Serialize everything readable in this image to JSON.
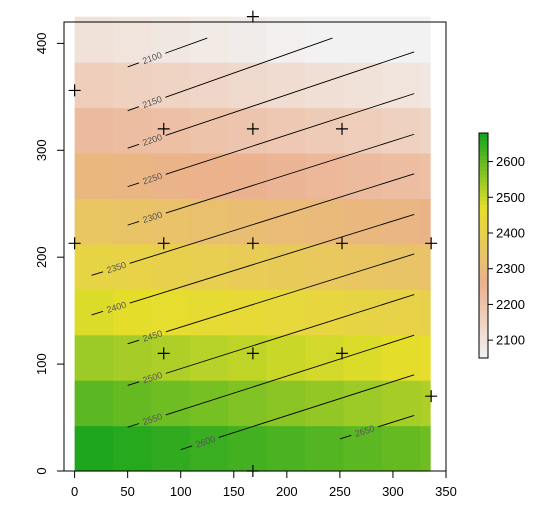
{
  "chart_data": {
    "type": "heatmap",
    "title": "",
    "xlabel": "",
    "ylabel": "",
    "xlim": [
      -10,
      350
    ],
    "ylim": [
      0,
      420
    ],
    "x_ticks": [
      0,
      50,
      100,
      150,
      200,
      250,
      300,
      350
    ],
    "y_ticks": [
      0,
      100,
      200,
      300,
      400
    ],
    "x_tick_labels": [
      "0",
      "50",
      "100",
      "150",
      "200",
      "250",
      "300",
      "350"
    ],
    "y_tick_labels": [
      "0",
      "100",
      "200",
      "300",
      "400"
    ],
    "grid": false,
    "raster": {
      "x_edges": [
        0,
        36.2,
        72.4,
        108.6,
        144.8,
        181,
        217.2,
        253.4,
        289.6,
        325.8,
        335
      ],
      "y_edges": [
        0,
        42.5,
        85,
        127.5,
        170,
        212.5,
        255,
        297.5,
        340,
        382.5,
        425
      ],
      "values": [
        [
          2669,
          2660,
          2651,
          2642,
          2633,
          2625,
          2616,
          2607,
          2598,
          2589
        ],
        [
          2607,
          2598,
          2589,
          2580,
          2571,
          2562,
          2553,
          2544,
          2535,
          2527
        ],
        [
          2544,
          2535,
          2526,
          2517,
          2508,
          2499,
          2490,
          2481,
          2472,
          2463
        ],
        [
          2481,
          2472,
          2463,
          2454,
          2445,
          2436,
          2427,
          2418,
          2409,
          2400
        ],
        [
          2418,
          2409,
          2400,
          2391,
          2382,
          2373,
          2364,
          2355,
          2346,
          2338
        ],
        [
          2355,
          2347,
          2338,
          2329,
          2320,
          2311,
          2302,
          2293,
          2284,
          2275
        ],
        [
          2293,
          2284,
          2275,
          2266,
          2257,
          2248,
          2239,
          2230,
          2221,
          2212
        ],
        [
          2230,
          2221,
          2212,
          2203,
          2194,
          2185,
          2176,
          2167,
          2158,
          2149
        ],
        [
          2167,
          2158,
          2149,
          2140,
          2131,
          2122,
          2113,
          2104,
          2096,
          2087
        ],
        [
          2104,
          2095,
          2086,
          2077,
          2068,
          2059,
          2050,
          2041,
          2032,
          2024
        ]
      ]
    },
    "contours": [
      {
        "level": "2100",
        "label": "2100",
        "x": [
          50,
          125
        ],
        "y": [
          378,
          405
        ]
      },
      {
        "level": "2150",
        "label": "2150",
        "x": [
          50,
          243
        ],
        "y": [
          337,
          405
        ]
      },
      {
        "level": "2200",
        "label": "2200",
        "x": [
          50,
          320
        ],
        "y": [
          302,
          392
        ]
      },
      {
        "level": "2250",
        "label": "2250",
        "x": [
          50,
          320
        ],
        "y": [
          266,
          353
        ]
      },
      {
        "level": "2300",
        "label": "2300",
        "x": [
          50,
          320
        ],
        "y": [
          230,
          315
        ]
      },
      {
        "level": "2350",
        "label": "2350",
        "x": [
          16,
          320
        ],
        "y": [
          183,
          278
        ]
      },
      {
        "level": "2400",
        "label": "2400",
        "x": [
          16,
          320
        ],
        "y": [
          146,
          240
        ]
      },
      {
        "level": "2450",
        "label": "2450",
        "x": [
          50,
          320
        ],
        "y": [
          119,
          203
        ]
      },
      {
        "level": "2500",
        "label": "2500",
        "x": [
          50,
          320
        ],
        "y": [
          80,
          165
        ]
      },
      {
        "level": "2550",
        "label": "2550",
        "x": [
          50,
          320
        ],
        "y": [
          41,
          127
        ]
      },
      {
        "level": "2600",
        "label": "2600",
        "x": [
          100,
          320
        ],
        "y": [
          20,
          90
        ]
      },
      {
        "level": "2650",
        "label": "2650",
        "x": [
          250,
          320
        ],
        "y": [
          30,
          52
        ]
      }
    ],
    "points": [
      {
        "x": 0,
        "y": 356
      },
      {
        "x": 84,
        "y": 320
      },
      {
        "x": 168,
        "y": 320
      },
      {
        "x": 252,
        "y": 320
      },
      {
        "x": 0,
        "y": 213
      },
      {
        "x": 84,
        "y": 213
      },
      {
        "x": 168,
        "y": 213
      },
      {
        "x": 252,
        "y": 213
      },
      {
        "x": 336,
        "y": 213
      },
      {
        "x": 84,
        "y": 110
      },
      {
        "x": 168,
        "y": 110
      },
      {
        "x": 252,
        "y": 110
      },
      {
        "x": 336,
        "y": 70
      },
      {
        "x": 168,
        "y": 425
      },
      {
        "x": 168,
        "y": 0
      }
    ],
    "colorbar": {
      "range": [
        2050,
        2680
      ],
      "ticks": [
        2100,
        2200,
        2300,
        2400,
        2500,
        2600
      ],
      "tick_labels": [
        "2100",
        "2200",
        "2300",
        "2400",
        "2500",
        "2600"
      ],
      "palette": [
        "#f2f2f2",
        "#ebb18f",
        "#e6df2b",
        "#13a31d"
      ]
    }
  }
}
